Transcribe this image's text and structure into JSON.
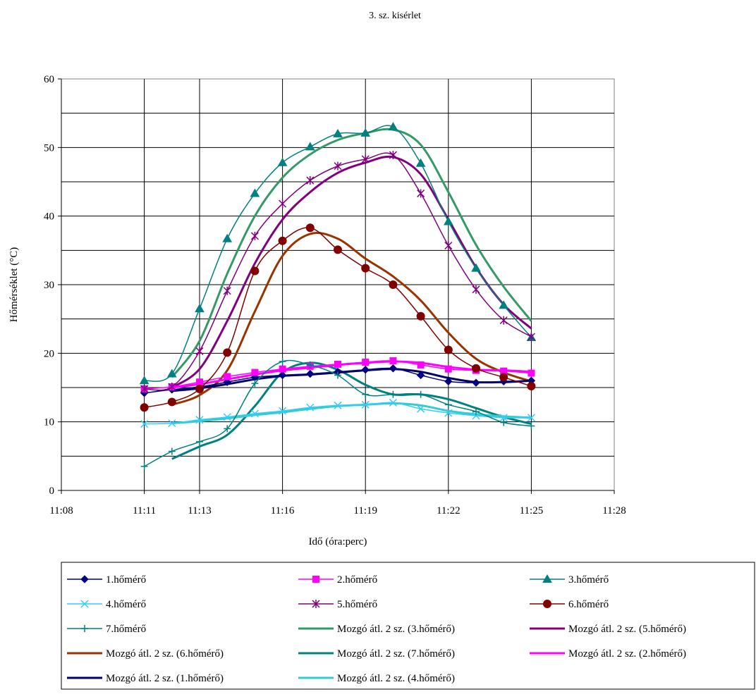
{
  "chart_data": {
    "type": "line",
    "title": "3. sz. kisérlet",
    "xlabel": "Idő (óra:perc)",
    "ylabel": "Hőmérséklet (°C)",
    "xlim": [
      "11:08",
      "11:28"
    ],
    "ylim": [
      0,
      60
    ],
    "x_ticks": [
      "11:08",
      "11:11",
      "11:13",
      "11:16",
      "11:19",
      "11:22",
      "11:25",
      "11:28"
    ],
    "y_ticks": [
      0,
      10,
      20,
      30,
      40,
      50,
      60
    ],
    "grid": true,
    "legend_position": "bottom",
    "x": [
      "11:11",
      "11:12",
      "11:13",
      "11:14",
      "11:15",
      "11:16",
      "11:17",
      "11:18",
      "11:19",
      "11:20",
      "11:21",
      "11:22",
      "11:23",
      "11:24",
      "11:25"
    ],
    "series": [
      {
        "name": "1.hőmérő",
        "color": "#000080",
        "marker": "diamond",
        "width": 1.5,
        "values": [
          14.2,
          14.7,
          15.1,
          15.8,
          16.5,
          16.8,
          17.0,
          17.3,
          17.6,
          17.8,
          16.8,
          15.9,
          15.7,
          15.9,
          16.0
        ]
      },
      {
        "name": "2.hőmérő",
        "color": "#FF00FF",
        "marker": "square",
        "width": 1.5,
        "values": [
          14.8,
          15.1,
          15.8,
          16.6,
          17.2,
          17.7,
          18.1,
          18.4,
          18.7,
          18.9,
          18.3,
          17.7,
          17.5,
          17.4,
          17.1
        ]
      },
      {
        "name": "3.hőmérő",
        "color": "#008080",
        "marker": "triangle",
        "width": 1.5,
        "values": [
          16.0,
          17.0,
          26.5,
          36.7,
          43.3,
          47.8,
          50.1,
          52.0,
          52.1,
          53.0,
          47.7,
          39.2,
          32.4,
          27.0,
          22.3
        ]
      },
      {
        "name": "4.hőmérő",
        "color": "#33CCFF",
        "marker": "x",
        "width": 1.5,
        "values": [
          9.7,
          9.8,
          10.3,
          10.7,
          11.2,
          11.6,
          12.1,
          12.4,
          12.5,
          12.8,
          11.9,
          11.3,
          10.9,
          10.6,
          10.6
        ]
      },
      {
        "name": "5.hőmérő",
        "color": "#800080",
        "marker": "star",
        "width": 1.5,
        "values": [
          14.8,
          15.1,
          20.3,
          29.1,
          37.1,
          41.8,
          45.2,
          47.3,
          48.3,
          48.9,
          43.3,
          35.7,
          29.3,
          24.8,
          22.4
        ]
      },
      {
        "name": "6.hőmérő",
        "color": "#800000",
        "marker": "circle",
        "width": 1.5,
        "values": [
          12.1,
          12.9,
          14.8,
          20.1,
          32.0,
          36.4,
          38.3,
          35.1,
          32.4,
          30.0,
          25.4,
          20.5,
          17.8,
          16.5,
          15.2
        ]
      },
      {
        "name": "7.hőmérő",
        "color": "#008080",
        "marker": "plus",
        "width": 1.5,
        "values": [
          3.5,
          5.7,
          7.1,
          9.0,
          15.6,
          18.8,
          18.3,
          16.8,
          14.0,
          14.0,
          14.0,
          12.5,
          11.5,
          9.9,
          9.4
        ]
      },
      {
        "name": "Mozgó átl. 2 sz. (3.hőmérő)",
        "color": "#339966",
        "marker": "none",
        "width": 3,
        "values": [
          null,
          16.5,
          21.8,
          31.6,
          40.0,
          45.6,
          49.0,
          51.1,
          52.1,
          52.6,
          50.4,
          43.5,
          35.8,
          29.7,
          24.7
        ]
      },
      {
        "name": "Mozgó átl. 2 sz. (5.hőmérő)",
        "color": "#800080",
        "marker": "none",
        "width": 3,
        "values": [
          null,
          15.0,
          17.7,
          24.7,
          33.1,
          39.5,
          43.5,
          46.3,
          47.8,
          48.6,
          46.1,
          39.5,
          32.5,
          27.1,
          23.6
        ]
      },
      {
        "name": "Mozgó átl. 2 sz. (6.hőmérő)",
        "color": "#993300",
        "marker": "none",
        "width": 3,
        "values": [
          null,
          12.5,
          13.9,
          17.5,
          26.1,
          34.2,
          37.4,
          36.7,
          33.8,
          31.2,
          27.7,
          23.0,
          19.2,
          17.2,
          15.9
        ]
      },
      {
        "name": "Mozgó átl. 2 sz. (7.hőmérő)",
        "color": "#008080",
        "marker": "none",
        "width": 3,
        "values": [
          null,
          4.6,
          6.4,
          8.1,
          12.3,
          17.2,
          18.6,
          17.6,
          15.4,
          14.0,
          14.0,
          13.3,
          12.0,
          10.7,
          9.7
        ]
      },
      {
        "name": "Mozgó átl. 2 sz. (2.hőmérő)",
        "color": "#FF00FF",
        "marker": "none",
        "width": 3,
        "values": [
          null,
          15.0,
          15.5,
          16.2,
          16.9,
          17.5,
          17.9,
          18.3,
          18.6,
          18.8,
          18.6,
          18.0,
          17.6,
          17.5,
          17.3
        ]
      },
      {
        "name": "Mozgó átl. 2 sz. (1.hőmérő)",
        "color": "#000066",
        "marker": "none",
        "width": 3,
        "values": [
          null,
          14.5,
          14.9,
          15.5,
          16.2,
          16.7,
          16.9,
          17.2,
          17.5,
          17.7,
          17.3,
          16.4,
          15.8,
          15.8,
          16.0
        ]
      },
      {
        "name": "Mozgó átl. 2 sz. (4.hőmérő)",
        "color": "#33CCCC",
        "marker": "none",
        "width": 3,
        "values": [
          null,
          9.8,
          10.1,
          10.5,
          11.0,
          11.4,
          11.9,
          12.3,
          12.5,
          12.7,
          12.4,
          11.6,
          11.1,
          10.8,
          10.6
        ]
      }
    ]
  }
}
